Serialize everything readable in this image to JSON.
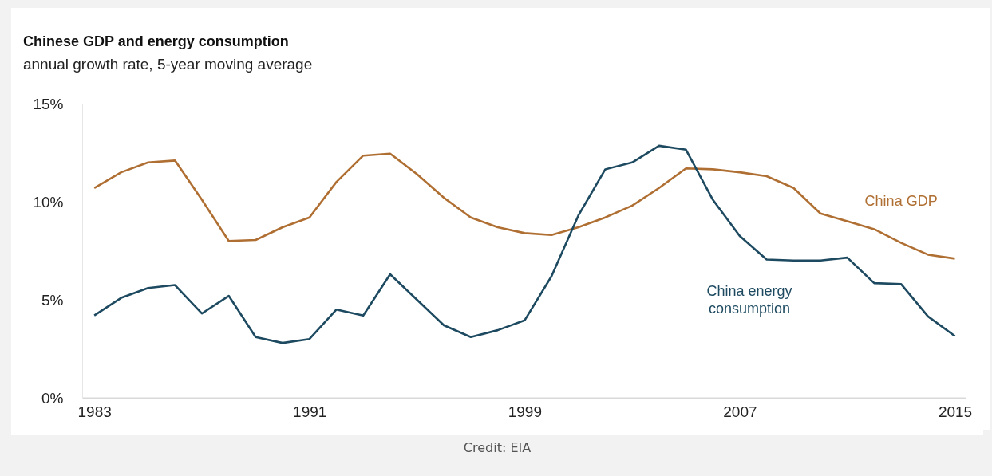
{
  "chart_data": {
    "type": "line",
    "title": "Chinese GDP and energy consumption",
    "subtitle": "annual growth rate, 5-year moving average",
    "x": [
      1983,
      1984,
      1985,
      1986,
      1987,
      1988,
      1989,
      1990,
      1991,
      1992,
      1993,
      1994,
      1995,
      1996,
      1997,
      1998,
      1999,
      2000,
      2001,
      2002,
      2003,
      2004,
      2005,
      2006,
      2007,
      2008,
      2009,
      2010,
      2011,
      2012,
      2013,
      2014,
      2015
    ],
    "series": [
      {
        "name": "China GDP",
        "color": "#b06f32",
        "values": [
          10.7,
          11.5,
          12.0,
          12.1,
          10.1,
          8.0,
          8.05,
          8.7,
          9.2,
          11.0,
          12.35,
          12.45,
          11.4,
          10.2,
          9.2,
          8.7,
          8.4,
          8.3,
          8.7,
          9.2,
          9.8,
          10.7,
          11.7,
          11.65,
          11.5,
          11.3,
          10.7,
          9.4,
          9.0,
          8.6,
          7.9,
          7.3,
          7.1
        ]
      },
      {
        "name": "China energy consumption",
        "color": "#1d4a60",
        "values": [
          4.2,
          5.1,
          5.6,
          5.75,
          4.3,
          5.2,
          3.1,
          2.8,
          3.0,
          4.5,
          4.2,
          6.3,
          5.0,
          3.7,
          3.1,
          3.45,
          3.95,
          6.2,
          9.3,
          11.65,
          12.0,
          12.85,
          12.65,
          10.1,
          8.25,
          7.05,
          7.0,
          7.0,
          7.15,
          5.85,
          5.8,
          4.15,
          3.15
        ]
      }
    ],
    "xlim": [
      1982.55,
      2015.4
    ],
    "xticks": [
      1983,
      1991,
      1999,
      2007,
      2015
    ],
    "ylim": [
      0,
      15
    ],
    "yticks": [
      {
        "value": 0,
        "label": "0%"
      },
      {
        "value": 5,
        "label": "5%"
      },
      {
        "value": 10,
        "label": "10%"
      },
      {
        "value": 15,
        "label": "15%"
      }
    ],
    "grid": false,
    "marker": "none",
    "line_style": "solid",
    "annotations": [
      "Credit: EIA"
    ]
  }
}
